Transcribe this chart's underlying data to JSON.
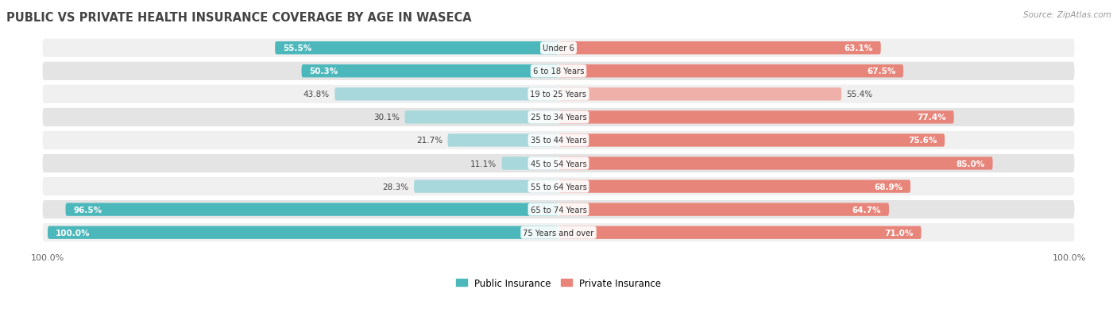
{
  "title": "Public vs Private Health Insurance Coverage by Age in Waseca",
  "source": "Source: ZipAtlas.com",
  "categories": [
    "Under 6",
    "6 to 18 Years",
    "19 to 25 Years",
    "25 to 34 Years",
    "35 to 44 Years",
    "45 to 54 Years",
    "55 to 64 Years",
    "65 to 74 Years",
    "75 Years and over"
  ],
  "public_values": [
    55.5,
    50.3,
    43.8,
    30.1,
    21.7,
    11.1,
    28.3,
    96.5,
    100.0
  ],
  "private_values": [
    63.1,
    67.5,
    55.4,
    77.4,
    75.6,
    85.0,
    68.9,
    64.7,
    71.0
  ],
  "public_color_dark": "#4db8bc",
  "public_color_light": "#a8d8db",
  "private_color_dark": "#e8857b",
  "private_color_light": "#f0b0aa",
  "row_bg_light": "#f0f0f0",
  "row_bg_dark": "#e4e4e4",
  "title_color": "#444444",
  "source_color": "#999999",
  "max_value": 100.0,
  "legend_public": "Public Insurance",
  "legend_private": "Private Insurance",
  "pub_dark_threshold": 50.0,
  "priv_dark_threshold": 63.0
}
